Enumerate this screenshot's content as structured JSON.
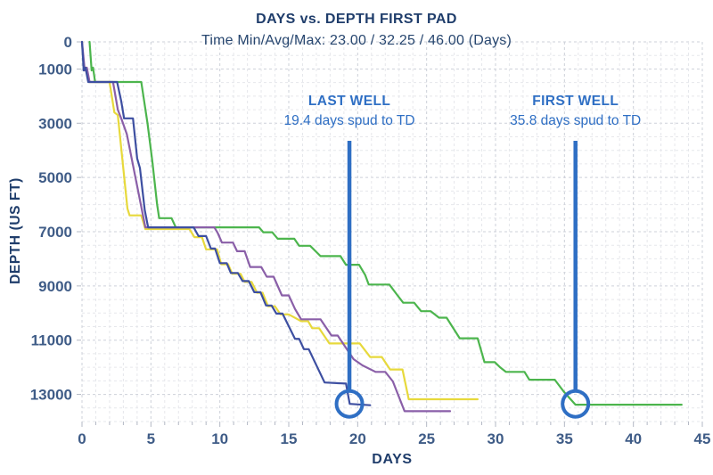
{
  "page": {
    "background": "#ffffff"
  },
  "chart_data": {
    "type": "line",
    "title": "DAYS vs. DEPTH FIRST PAD",
    "subtitle": "Time Min/Avg/Max: 23.00 / 32.25 / 46.00 (Days)",
    "xlabel": "DAYS",
    "ylabel": "DEPTH (US FT)",
    "x_domain": [
      0,
      45
    ],
    "y_domain": [
      0,
      14000
    ],
    "y_inverted": true,
    "grid": {
      "x_minor_step": 1,
      "x_major_step": 5,
      "y_minor_step": 500,
      "y_major_ticks_only": true,
      "style": "dashed"
    },
    "x_ticks": [
      0,
      5,
      10,
      15,
      20,
      25,
      30,
      35,
      40,
      45
    ],
    "y_ticks": [
      0,
      1000,
      3000,
      5000,
      7000,
      9000,
      11000,
      13000
    ],
    "colors": {
      "title_text": "#1f3d6b",
      "tick_text": "#3f5c87",
      "annotation_blue": "#2f6fc4",
      "grid_minor": "#e6e7eb",
      "grid_major": "#cdd0d9",
      "tick_mark": "#b3b8c4"
    },
    "series": [
      {
        "name": "first-well-green",
        "color": "#4cb54d",
        "points": [
          [
            0.55,
            0
          ],
          [
            0.7,
            1050
          ],
          [
            0.8,
            950
          ],
          [
            0.95,
            1480
          ],
          [
            4.3,
            1480
          ],
          [
            4.75,
            3000
          ],
          [
            5.1,
            4400
          ],
          [
            5.45,
            6000
          ],
          [
            5.6,
            6500
          ],
          [
            6.5,
            6500
          ],
          [
            6.8,
            6840
          ],
          [
            12.85,
            6840
          ],
          [
            13.15,
            7020
          ],
          [
            13.8,
            7020
          ],
          [
            14.2,
            7260
          ],
          [
            15.4,
            7260
          ],
          [
            15.75,
            7520
          ],
          [
            16.55,
            7520
          ],
          [
            17.3,
            7900
          ],
          [
            18.75,
            7900
          ],
          [
            19.15,
            8220
          ],
          [
            20.1,
            8220
          ],
          [
            20.55,
            8600
          ],
          [
            20.8,
            8950
          ],
          [
            22.3,
            8950
          ],
          [
            22.85,
            9320
          ],
          [
            23.3,
            9620
          ],
          [
            24.1,
            9620
          ],
          [
            24.6,
            9930
          ],
          [
            25.3,
            9930
          ],
          [
            25.9,
            10170
          ],
          [
            26.45,
            10170
          ],
          [
            27.4,
            10930
          ],
          [
            28.7,
            10930
          ],
          [
            29.2,
            11810
          ],
          [
            29.95,
            11810
          ],
          [
            30.35,
            12010
          ],
          [
            30.75,
            12170
          ],
          [
            32.1,
            12170
          ],
          [
            32.45,
            12460
          ],
          [
            34.3,
            12460
          ],
          [
            34.95,
            12900
          ],
          [
            35.8,
            13380
          ],
          [
            43.5,
            13380
          ]
        ]
      },
      {
        "name": "well-yellow",
        "color": "#e7d93c",
        "points": [
          [
            0,
            0
          ],
          [
            0.15,
            1050
          ],
          [
            0.3,
            950
          ],
          [
            0.5,
            1480
          ],
          [
            2.0,
            1480
          ],
          [
            2.35,
            2600
          ],
          [
            2.6,
            2700
          ],
          [
            3.3,
            6150
          ],
          [
            3.45,
            6400
          ],
          [
            4.3,
            6400
          ],
          [
            4.6,
            6900
          ],
          [
            7.8,
            6900
          ],
          [
            8.15,
            7200
          ],
          [
            8.7,
            7200
          ],
          [
            9.0,
            7650
          ],
          [
            9.8,
            7650
          ],
          [
            10.1,
            8200
          ],
          [
            10.6,
            8200
          ],
          [
            10.9,
            8550
          ],
          [
            11.5,
            8550
          ],
          [
            11.8,
            8850
          ],
          [
            12.3,
            8850
          ],
          [
            12.7,
            9250
          ],
          [
            13.1,
            9250
          ],
          [
            13.5,
            9750
          ],
          [
            14.0,
            9750
          ],
          [
            14.4,
            10050
          ],
          [
            15.0,
            10050
          ],
          [
            15.9,
            10300
          ],
          [
            16.4,
            10300
          ],
          [
            16.7,
            10560
          ],
          [
            17.2,
            10560
          ],
          [
            17.95,
            11120
          ],
          [
            20.15,
            11120
          ],
          [
            20.9,
            11620
          ],
          [
            21.75,
            11620
          ],
          [
            22.35,
            12080
          ],
          [
            23.25,
            12080
          ],
          [
            23.7,
            13180
          ],
          [
            28.7,
            13180
          ]
        ]
      },
      {
        "name": "well-purple",
        "color": "#8a5fa8",
        "points": [
          [
            0,
            0
          ],
          [
            0.2,
            1050
          ],
          [
            0.35,
            950
          ],
          [
            0.55,
            1480
          ],
          [
            2.25,
            1480
          ],
          [
            2.6,
            2500
          ],
          [
            2.9,
            2900
          ],
          [
            3.25,
            3400
          ],
          [
            4.6,
            6840
          ],
          [
            9.6,
            6840
          ],
          [
            9.85,
            7050
          ],
          [
            10.15,
            7400
          ],
          [
            10.95,
            7400
          ],
          [
            11.25,
            7720
          ],
          [
            11.8,
            7720
          ],
          [
            12.2,
            8300
          ],
          [
            13.0,
            8300
          ],
          [
            13.4,
            8660
          ],
          [
            13.9,
            8660
          ],
          [
            14.5,
            9350
          ],
          [
            15.0,
            9350
          ],
          [
            15.45,
            9850
          ],
          [
            15.9,
            10230
          ],
          [
            17.3,
            10230
          ],
          [
            18.1,
            10830
          ],
          [
            18.55,
            10830
          ],
          [
            19.7,
            11700
          ],
          [
            20.35,
            11930
          ],
          [
            21.3,
            12170
          ],
          [
            22.0,
            12170
          ],
          [
            22.55,
            12520
          ],
          [
            23.4,
            13620
          ],
          [
            26.7,
            13620
          ]
        ]
      },
      {
        "name": "last-well-navy",
        "color": "#3d4fa1",
        "points": [
          [
            0,
            0
          ],
          [
            0.12,
            1050
          ],
          [
            0.25,
            950
          ],
          [
            0.45,
            1480
          ],
          [
            2.55,
            1480
          ],
          [
            2.85,
            2200
          ],
          [
            3.05,
            2820
          ],
          [
            3.7,
            2820
          ],
          [
            4.0,
            4300
          ],
          [
            4.2,
            4650
          ],
          [
            4.55,
            6200
          ],
          [
            4.8,
            6840
          ],
          [
            8.1,
            6840
          ],
          [
            8.45,
            7160
          ],
          [
            9.0,
            7160
          ],
          [
            9.35,
            7620
          ],
          [
            9.65,
            7620
          ],
          [
            10.0,
            8160
          ],
          [
            10.5,
            8160
          ],
          [
            10.8,
            8520
          ],
          [
            11.3,
            8520
          ],
          [
            11.65,
            8820
          ],
          [
            12.1,
            8820
          ],
          [
            12.5,
            9230
          ],
          [
            12.95,
            9230
          ],
          [
            13.35,
            9720
          ],
          [
            13.75,
            9720
          ],
          [
            14.1,
            10020
          ],
          [
            14.55,
            10020
          ],
          [
            15.45,
            10950
          ],
          [
            15.75,
            10950
          ],
          [
            16.1,
            11330
          ],
          [
            16.45,
            11330
          ],
          [
            17.6,
            12560
          ],
          [
            19.15,
            12600
          ],
          [
            19.42,
            13350
          ],
          [
            20.9,
            13400
          ]
        ]
      }
    ],
    "annotations": [
      {
        "label": "LAST WELL",
        "sublabel": "19.4 days spud to TD",
        "day": 19.4,
        "depth": 13350
      },
      {
        "label": "FIRST WELL",
        "sublabel": "35.8 days spud to TD",
        "day": 35.8,
        "depth": 13350
      }
    ],
    "legend": {
      "visible": false
    }
  }
}
